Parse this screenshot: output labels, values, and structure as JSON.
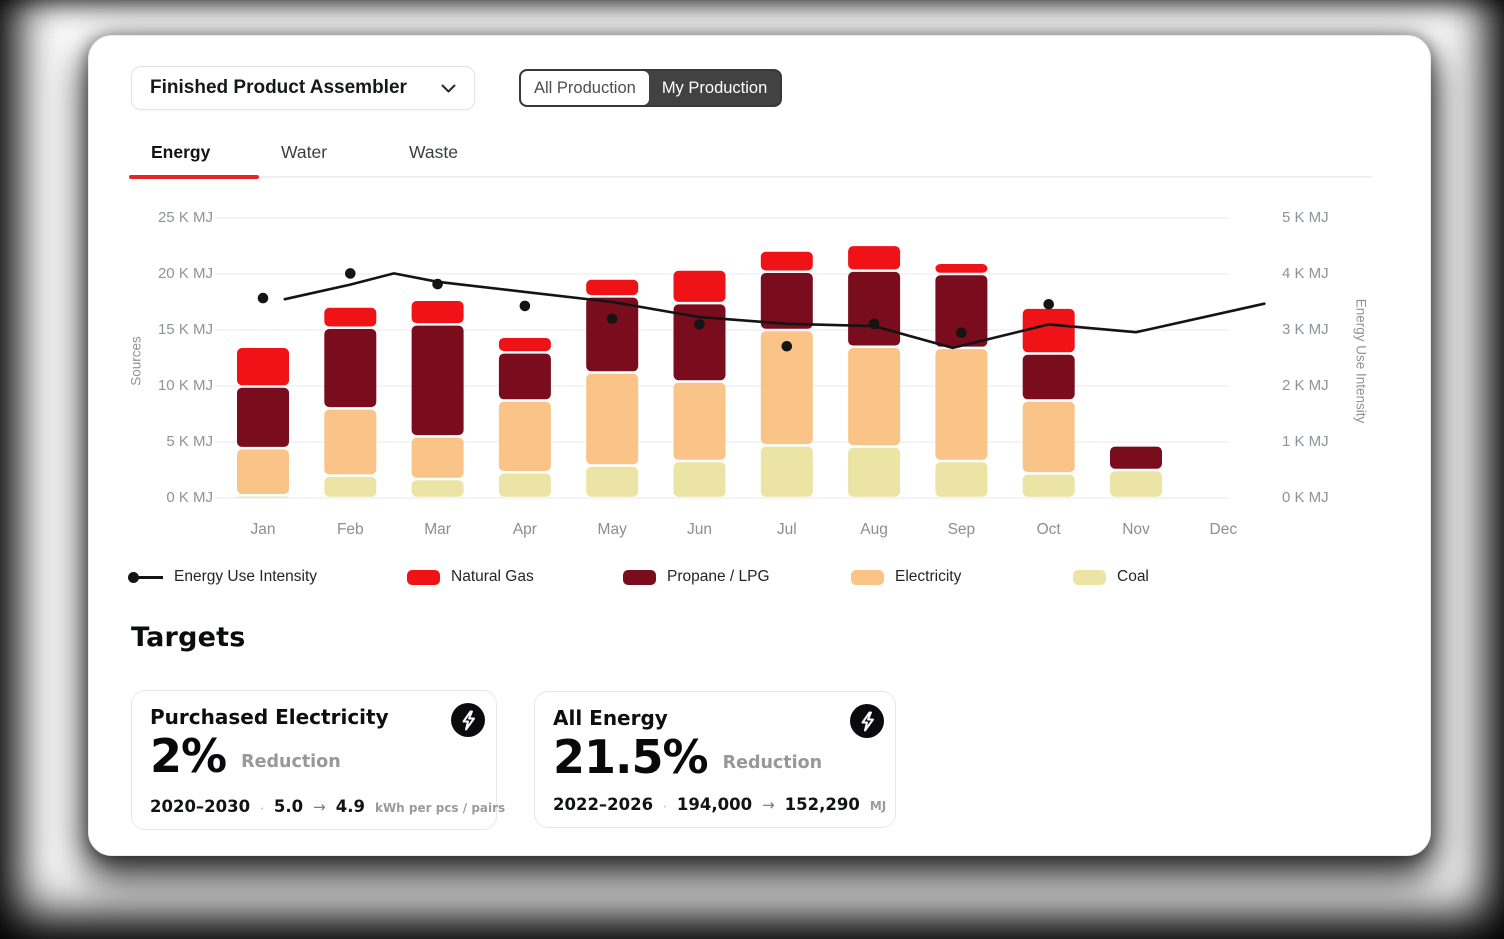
{
  "header": {
    "facility_selector": {
      "value": "Finished Product Assembler",
      "icon": "chevron-down-icon"
    },
    "production_toggle": {
      "options": [
        "All Production",
        "My Production"
      ],
      "selected": "My Production"
    }
  },
  "tabs": [
    {
      "label": "Energy",
      "active": true
    },
    {
      "label": "Water",
      "active": false
    },
    {
      "label": "Waste",
      "active": false
    }
  ],
  "chart_data": {
    "type": "bar",
    "subtype": "stacked-bars-with-intensity-line",
    "months": [
      "Jan",
      "Feb",
      "Mar",
      "Apr",
      "May",
      "Jun",
      "Jul",
      "Aug",
      "Sep",
      "Oct",
      "Nov",
      "Dec"
    ],
    "left_axis": {
      "title": "Sources",
      "ticks": [
        "0 K MJ",
        "5 K MJ",
        "10 K MJ",
        "15 K MJ",
        "20 K MJ",
        "25 K MJ"
      ],
      "min": 0,
      "max": 25
    },
    "right_axis": {
      "title": "Energy Use Intensity",
      "ticks": [
        "0 K MJ",
        "1 K MJ",
        "2 K MJ",
        "3 K MJ",
        "4 K MJ",
        "5 K MJ"
      ],
      "min": 0,
      "max": 5
    },
    "series": [
      {
        "name": "Coal",
        "color": "#ece4a4",
        "values": [
          0.25,
          2.0,
          1.7,
          2.3,
          2.9,
          3.3,
          4.7,
          4.6,
          3.3,
          2.2,
          2.5,
          0
        ]
      },
      {
        "name": "Electricity",
        "color": "#fac489",
        "values": [
          4.2,
          6.0,
          3.8,
          6.4,
          8.3,
          7.1,
          10.3,
          8.9,
          10.1,
          6.5,
          0,
          0
        ]
      },
      {
        "name": "Propane / LPG",
        "color": "#7a0d1d",
        "values": [
          5.5,
          7.2,
          10.0,
          4.3,
          6.8,
          7.0,
          5.2,
          6.8,
          6.6,
          4.2,
          2.2,
          0
        ]
      },
      {
        "name": "Natural Gas",
        "color": "#ef1318",
        "values": [
          3.55,
          1.9,
          2.2,
          1.4,
          1.6,
          3.0,
          1.9,
          2.3,
          1.0,
          4.1,
          0,
          0
        ]
      }
    ],
    "line": {
      "name": "Energy Use Intensity",
      "color": "#141414",
      "axis": "right",
      "points": [
        [
          0.25,
          3.55
        ],
        [
          1,
          3.81
        ],
        [
          1.5,
          4.01
        ],
        [
          2,
          3.86
        ],
        [
          3,
          3.68
        ],
        [
          4,
          3.5
        ],
        [
          5,
          3.23
        ],
        [
          6,
          3.11
        ],
        [
          7,
          3.07
        ],
        [
          7.9,
          2.68
        ],
        [
          9,
          3.1
        ],
        [
          10,
          2.96
        ],
        [
          11.47,
          3.47
        ]
      ]
    },
    "dots": {
      "name": "Energy Use Intensity",
      "color": "#141414",
      "axis": "right",
      "values": [
        3.57,
        4.01,
        3.82,
        3.43,
        3.2,
        3.1,
        2.71,
        3.11,
        2.95,
        3.46,
        null,
        null
      ]
    },
    "grid": true,
    "legend_position": "bottom"
  },
  "legend": [
    {
      "label": "Energy Use Intensity",
      "marker": "line-dot",
      "color": "#141414"
    },
    {
      "label": "Natural Gas",
      "marker": "swatch",
      "color": "#ef1318"
    },
    {
      "label": "Propane / LPG",
      "marker": "swatch",
      "color": "#7a0d1d"
    },
    {
      "label": "Electricity",
      "marker": "swatch",
      "color": "#fac489"
    },
    {
      "label": "Coal",
      "marker": "swatch",
      "color": "#ece4a4"
    }
  ],
  "targets": {
    "heading": "Targets",
    "dot": "·",
    "arrow": "→",
    "cards": [
      {
        "title": "Purchased Electricity",
        "icon": "lightning-bolt-icon",
        "value": "2%",
        "value_label": "Reduction",
        "period": "2020–2030",
        "from": "5.0",
        "to": "4.9",
        "unit": "kWh per pcs / pairs"
      },
      {
        "title": "All Energy",
        "icon": "lightning-bolt-icon",
        "value": "21.5%",
        "value_label": "Reduction",
        "period": "2022–2026",
        "from": "194,000",
        "to": "152,290",
        "unit": "MJ"
      }
    ]
  },
  "colors": {
    "accent_red": "#e8242b",
    "toggle_dark": "#424242",
    "axis_text": "#8f929a",
    "gridline": "#f1f1f4"
  }
}
